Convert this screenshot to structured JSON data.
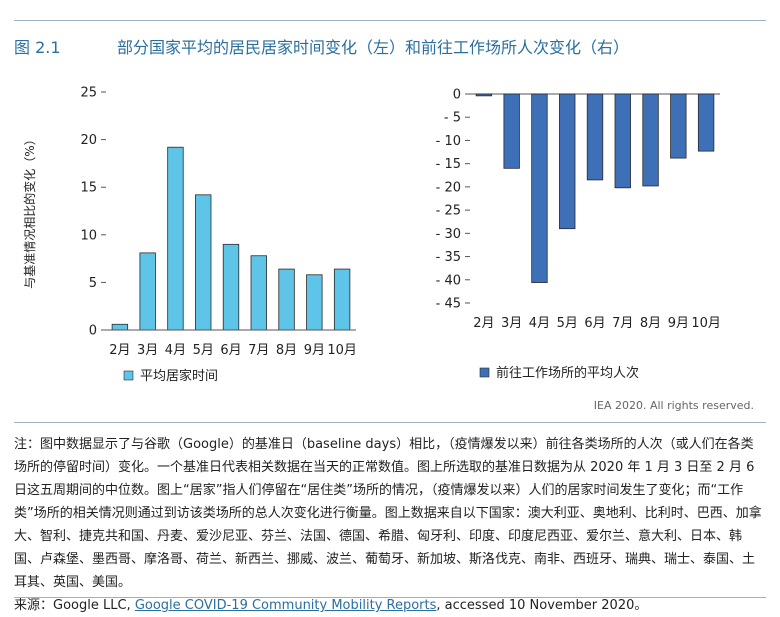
{
  "header": {
    "figure_number": "图 2.1",
    "title": "部分国家平均的居民居家时间变化（左）和前往工作场所人次变化（右）"
  },
  "chart_data": [
    {
      "type": "bar",
      "categories": [
        "2月",
        "3月",
        "4月",
        "5月",
        "6月",
        "7月",
        "8月",
        "9月",
        "10月"
      ],
      "series": [
        {
          "name": "平均居家时间",
          "values": [
            0.6,
            8.1,
            19.2,
            14.2,
            9.0,
            7.8,
            6.4,
            5.8,
            6.4
          ]
        }
      ],
      "ylabel": "与基准情况相比的变化（%）",
      "ylim": [
        0,
        25
      ],
      "yticks": [
        0,
        5,
        10,
        15,
        20,
        25
      ],
      "ytick_labels": [
        "0",
        "5",
        "10",
        "15",
        "20",
        "25"
      ],
      "legend": "bottom-left",
      "grid": false,
      "bar_color": "#5ec4e8"
    },
    {
      "type": "bar",
      "categories": [
        "2月",
        "3月",
        "4月",
        "5月",
        "6月",
        "7月",
        "8月",
        "9月",
        "10月"
      ],
      "series": [
        {
          "name": "前往工作场所的平均人次",
          "values": [
            -0.4,
            -16.0,
            -40.6,
            -29.0,
            -18.5,
            -20.2,
            -19.8,
            -13.8,
            -12.3
          ]
        }
      ],
      "ylim": [
        -45,
        0
      ],
      "yticks": [
        0,
        -5,
        -10,
        -15,
        -20,
        -25,
        -30,
        -35,
        -40,
        -45
      ],
      "ytick_labels": [
        "0",
        "- 5",
        "- 10",
        "- 15",
        "- 20",
        "- 25",
        "- 30",
        "- 35",
        "- 40",
        "- 45"
      ],
      "legend": "bottom-left",
      "grid": false,
      "bar_color": "#3e70b8"
    }
  ],
  "copyright": "IEA 2020. All rights reserved.",
  "notes": {
    "note_text": "注：图中数据显示了与谷歌（Google）的基准日（baseline days）相比，（疫情爆发以来）前往各类场所的人次（或人们在各类场所的停留时间）变化。一个基准日代表相关数据在当天的正常数值。图上所选取的基准日数据为从 2020 年 1 月 3 日至 2 月 6 日这五周期间的中位数。图上“居家”指人们停留在“居住类”场所的情况，（疫情爆发以来）人们的居家时间发生了变化；而“工作类”场所的相关情况则通过到访该类场所的总人次变化进行衡量。图上数据来自以下国家：澳大利亚、奥地利、比利时、巴西、加拿大、智利、捷克共和国、丹麦、爱沙尼亚、芬兰、法国、德国、希腊、匈牙利、印度、印度尼西亚、爱尔兰、意大利、日本、韩国、卢森堡、墨西哥、摩洛哥、荷兰、新西兰、挪威、波兰、葡萄牙、新加坡、斯洛伐克、南非、西班牙、瑞典、瑞士、泰国、土耳其、英国、美国。",
    "source_prefix": "来源：Google LLC, ",
    "source_link": "Google COVID-19 Community Mobility Reports",
    "source_suffix": ", accessed 10 November 2020。"
  }
}
